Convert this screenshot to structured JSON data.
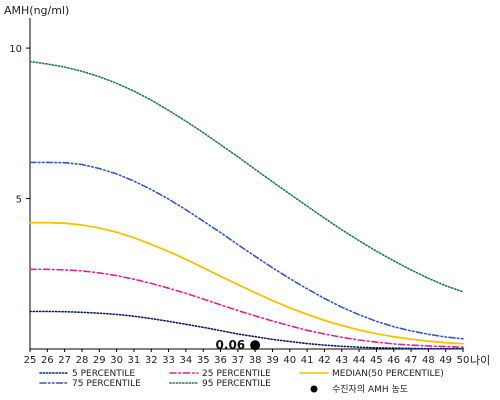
{
  "chart_data": {
    "type": "line",
    "ylabel": "AMH(ng/ml)",
    "xlabel": "나이",
    "x": [
      25,
      26,
      27,
      28,
      29,
      30,
      31,
      32,
      33,
      34,
      35,
      36,
      37,
      38,
      39,
      40,
      41,
      42,
      43,
      44,
      45,
      46,
      47,
      48,
      49,
      50
    ],
    "xlim": [
      25,
      50
    ],
    "ylim": [
      0,
      11
    ],
    "yticks": [
      5,
      10
    ],
    "grid": false,
    "legend_position": "bottom",
    "series": [
      {
        "name": "5 PERCENTILE",
        "color": "#0a1a5c",
        "dash": "dotted",
        "values": [
          1.25,
          1.25,
          1.24,
          1.22,
          1.19,
          1.15,
          1.09,
          1.01,
          0.92,
          0.82,
          0.72,
          0.61,
          0.5,
          0.41,
          0.32,
          0.25,
          0.18,
          0.13,
          0.09,
          0.06,
          0.04,
          0.03,
          0.02,
          0.01,
          0.01,
          0.01
        ]
      },
      {
        "name": "25 PERCENTILE",
        "color": "#e0218a",
        "dash": "dash-dot",
        "values": [
          2.65,
          2.65,
          2.63,
          2.6,
          2.53,
          2.44,
          2.32,
          2.18,
          2.02,
          1.85,
          1.66,
          1.47,
          1.28,
          1.1,
          0.93,
          0.77,
          0.62,
          0.5,
          0.39,
          0.3,
          0.23,
          0.17,
          0.13,
          0.1,
          0.08,
          0.06
        ]
      },
      {
        "name": "MEDIAN(50 PERCENTILE)",
        "color": "#f2c200",
        "dash": "solid",
        "values": [
          4.2,
          4.2,
          4.18,
          4.12,
          4.02,
          3.88,
          3.7,
          3.48,
          3.24,
          2.98,
          2.7,
          2.42,
          2.14,
          1.87,
          1.61,
          1.37,
          1.15,
          0.95,
          0.78,
          0.63,
          0.51,
          0.41,
          0.33,
          0.26,
          0.21,
          0.18
        ]
      },
      {
        "name": "75 PERCENTILE",
        "color": "#3355cc",
        "dash": "dash-dot-dot",
        "values": [
          6.2,
          6.2,
          6.19,
          6.13,
          6.0,
          5.82,
          5.58,
          5.3,
          4.98,
          4.63,
          4.25,
          3.87,
          3.47,
          3.08,
          2.7,
          2.34,
          2.0,
          1.68,
          1.39,
          1.14,
          0.92,
          0.74,
          0.6,
          0.49,
          0.4,
          0.34
        ]
      },
      {
        "name": "95 PERCENTILE",
        "color": "#1e7a4a",
        "dash": "dotted",
        "values": [
          9.55,
          9.47,
          9.37,
          9.23,
          9.05,
          8.83,
          8.57,
          8.27,
          7.93,
          7.57,
          7.19,
          6.79,
          6.39,
          5.97,
          5.56,
          5.15,
          4.75,
          4.35,
          3.96,
          3.6,
          3.25,
          2.93,
          2.63,
          2.35,
          2.1,
          1.9
        ]
      }
    ],
    "marker": {
      "name": "수진자의 AMH 농도",
      "x": 38,
      "y": 0.06,
      "label": "0.06",
      "color": "#000000"
    }
  }
}
